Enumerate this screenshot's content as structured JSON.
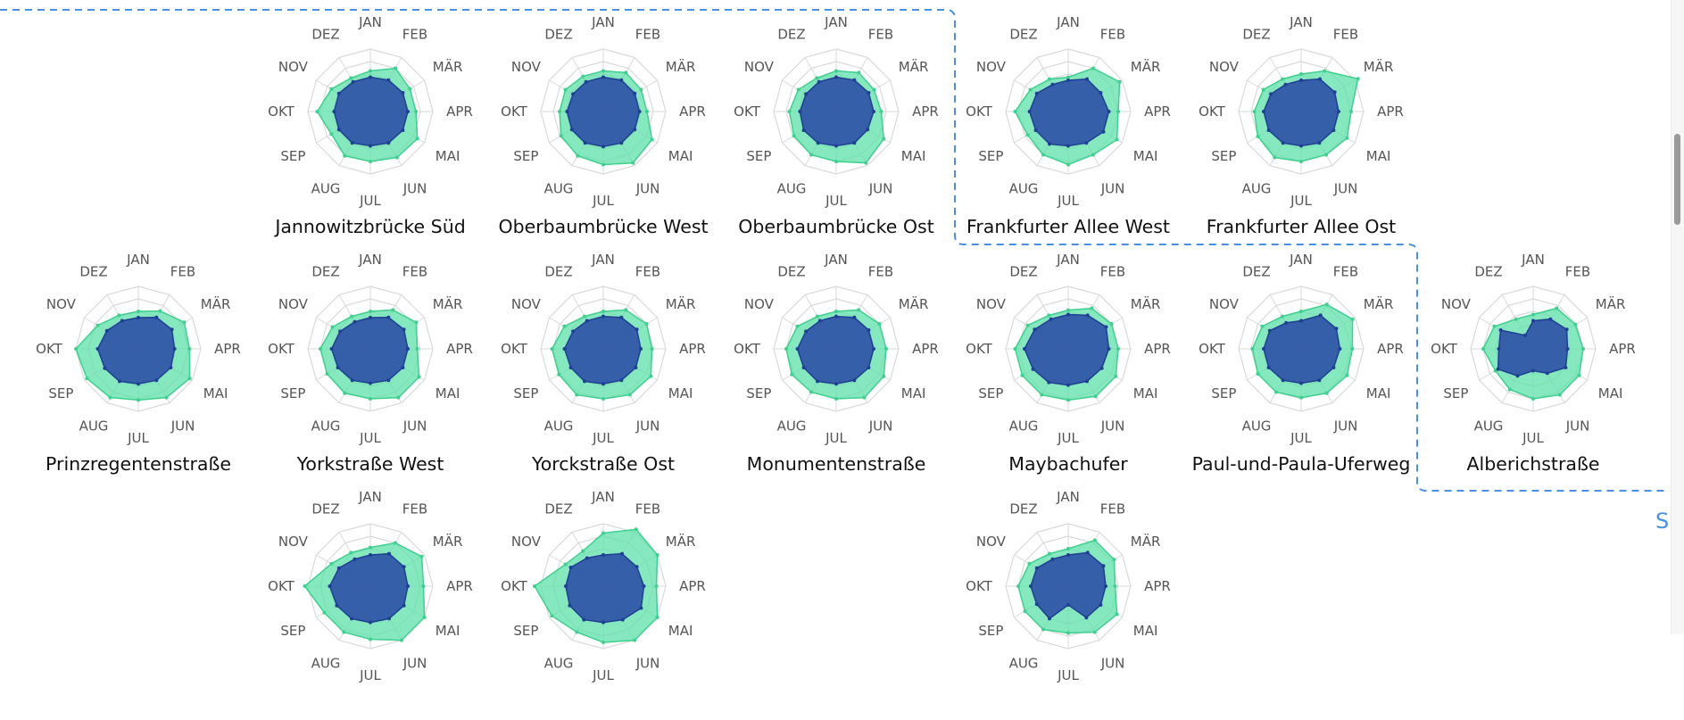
{
  "months": [
    "JAN",
    "FEB",
    "MÄR",
    "APR",
    "MAI",
    "JUN",
    "JUL",
    "AUG",
    "SEP",
    "OKT",
    "NOV",
    "DEZ"
  ],
  "colors": {
    "outer_fill": "#5ee0a8",
    "outer_stroke": "#3fcf8e",
    "inner_fill": "#3257a8",
    "inner_stroke": "#1f3f92",
    "grid": "#d9d9d9",
    "region_outline": "#4a90e2"
  },
  "side_label": "S",
  "stations": [
    {
      "name": "Jannowitzbrücke Süd",
      "outer": [
        0.65,
        0.8,
        0.73,
        0.73,
        0.87,
        0.85,
        0.8,
        0.82,
        0.72,
        0.85,
        0.72,
        0.62
      ],
      "inner": [
        0.55,
        0.58,
        0.6,
        0.6,
        0.6,
        0.58,
        0.55,
        0.58,
        0.58,
        0.58,
        0.58,
        0.55
      ]
    },
    {
      "name": "Oberbaumbrücke West",
      "outer": [
        0.65,
        0.72,
        0.7,
        0.7,
        0.9,
        0.95,
        0.85,
        0.82,
        0.78,
        0.7,
        0.7,
        0.65
      ],
      "inner": [
        0.55,
        0.58,
        0.58,
        0.58,
        0.58,
        0.58,
        0.56,
        0.58,
        0.58,
        0.58,
        0.56,
        0.55
      ]
    },
    {
      "name": "Oberbaumbrücke Ost",
      "outer": [
        0.65,
        0.72,
        0.7,
        0.72,
        0.88,
        0.95,
        0.8,
        0.8,
        0.78,
        0.75,
        0.7,
        0.62
      ],
      "inner": [
        0.55,
        0.58,
        0.6,
        0.6,
        0.58,
        0.58,
        0.55,
        0.58,
        0.6,
        0.58,
        0.56,
        0.55
      ]
    },
    {
      "name": "Frankfurter Allee West",
      "outer": [
        0.55,
        0.8,
        0.95,
        0.8,
        0.9,
        0.8,
        0.85,
        0.8,
        0.75,
        0.85,
        0.7,
        0.6
      ],
      "inner": [
        0.5,
        0.6,
        0.6,
        0.65,
        0.65,
        0.58,
        0.55,
        0.6,
        0.6,
        0.62,
        0.58,
        0.5
      ]
    },
    {
      "name": "Frankfurter Allee Ost",
      "outer": [
        0.6,
        0.75,
        1.05,
        0.8,
        0.85,
        0.8,
        0.8,
        0.85,
        0.8,
        0.75,
        0.7,
        0.6
      ],
      "inner": [
        0.5,
        0.6,
        0.62,
        0.6,
        0.6,
        0.58,
        0.55,
        0.58,
        0.6,
        0.6,
        0.56,
        0.5
      ]
    },
    {
      "name": "Prinzregentenstraße",
      "outer": [
        0.6,
        0.7,
        0.85,
        0.82,
        0.95,
        0.9,
        0.82,
        0.9,
        0.95,
        1.0,
        0.75,
        0.62
      ],
      "inner": [
        0.5,
        0.58,
        0.62,
        0.58,
        0.6,
        0.58,
        0.56,
        0.6,
        0.62,
        0.65,
        0.58,
        0.52
      ]
    },
    {
      "name": "Yorkstraße West",
      "outer": [
        0.6,
        0.72,
        0.85,
        0.75,
        0.9,
        0.9,
        0.8,
        0.82,
        0.8,
        0.8,
        0.7,
        0.6
      ],
      "inner": [
        0.5,
        0.58,
        0.62,
        0.6,
        0.6,
        0.58,
        0.55,
        0.58,
        0.6,
        0.62,
        0.56,
        0.5
      ]
    },
    {
      "name": "Yorckstraße Ost",
      "outer": [
        0.6,
        0.72,
        0.8,
        0.78,
        0.88,
        0.85,
        0.8,
        0.85,
        0.82,
        0.82,
        0.72,
        0.6
      ],
      "inner": [
        0.52,
        0.58,
        0.62,
        0.6,
        0.6,
        0.58,
        0.56,
        0.6,
        0.6,
        0.62,
        0.56,
        0.52
      ]
    },
    {
      "name": "Monumentenstraße",
      "outer": [
        0.6,
        0.72,
        0.8,
        0.8,
        0.88,
        0.9,
        0.8,
        0.8,
        0.82,
        0.8,
        0.72,
        0.6
      ],
      "inner": [
        0.52,
        0.58,
        0.6,
        0.6,
        0.6,
        0.58,
        0.56,
        0.6,
        0.6,
        0.62,
        0.56,
        0.52
      ]
    },
    {
      "name": "Maybachufer",
      "outer": [
        0.62,
        0.75,
        0.8,
        0.8,
        0.88,
        0.88,
        0.82,
        0.85,
        0.85,
        0.85,
        0.75,
        0.62
      ],
      "inner": [
        0.55,
        0.62,
        0.7,
        0.65,
        0.62,
        0.6,
        0.58,
        0.62,
        0.65,
        0.7,
        0.62,
        0.55
      ]
    },
    {
      "name": "Paul-und-Paula-Uferweg",
      "outer": [
        0.6,
        0.82,
        0.95,
        0.82,
        0.85,
        0.82,
        0.78,
        0.8,
        0.8,
        0.78,
        0.72,
        0.6
      ],
      "inner": [
        0.45,
        0.62,
        0.65,
        0.62,
        0.6,
        0.58,
        0.55,
        0.58,
        0.6,
        0.6,
        0.58,
        0.48
      ]
    },
    {
      "name": "Alberichstraße",
      "outer": [
        0.55,
        0.75,
        0.78,
        0.8,
        0.85,
        0.85,
        0.8,
        0.75,
        0.7,
        0.8,
        0.72,
        0.55
      ],
      "inner": [
        0.45,
        0.55,
        0.62,
        0.55,
        0.6,
        0.45,
        0.35,
        0.5,
        0.65,
        0.55,
        0.6,
        0.25
      ]
    },
    {
      "name": "",
      "outer": [
        0.62,
        0.8,
        0.95,
        0.85,
        1.0,
        1.0,
        0.85,
        0.85,
        0.85,
        1.05,
        0.72,
        0.62
      ],
      "inner": [
        0.5,
        0.6,
        0.62,
        0.6,
        0.62,
        0.6,
        0.58,
        0.6,
        0.62,
        0.65,
        0.58,
        0.5
      ]
    },
    {
      "name": "",
      "outer": [
        0.85,
        1.05,
        1.0,
        0.85,
        1.0,
        1.0,
        0.9,
        0.85,
        0.95,
        1.1,
        0.7,
        0.65
      ],
      "inner": [
        0.5,
        0.6,
        0.62,
        0.65,
        0.7,
        0.62,
        0.58,
        0.62,
        0.62,
        0.6,
        0.6,
        0.52
      ]
    },
    {
      "name": "",
      "outer": [
        0.6,
        0.85,
        0.85,
        0.75,
        0.9,
        0.85,
        0.75,
        0.8,
        0.8,
        0.8,
        0.72,
        0.6
      ],
      "inner": [
        0.5,
        0.62,
        0.65,
        0.6,
        0.6,
        0.58,
        0.3,
        0.6,
        0.58,
        0.6,
        0.58,
        0.5
      ]
    }
  ]
}
